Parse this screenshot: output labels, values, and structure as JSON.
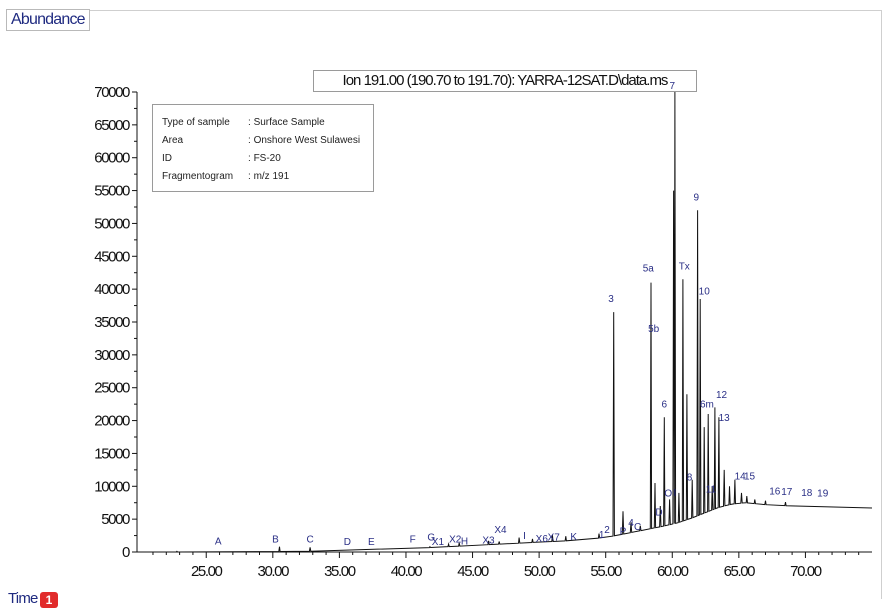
{
  "header": {
    "abundance_label": "Abundance"
  },
  "footer": {
    "time_label": "Time",
    "badge": "1"
  },
  "chart_data": {
    "type": "line",
    "title": "Ion 191.00 (190.70 to 191.70): YARRA-12SAT.D\\data.ms",
    "xlabel": "Time",
    "ylabel": "Abundance",
    "xlim": [
      19.8,
      75.0
    ],
    "ylim": [
      0,
      70000
    ],
    "x_ticks": [
      25.0,
      30.0,
      35.0,
      40.0,
      45.0,
      50.0,
      55.0,
      60.0,
      65.0,
      70.0
    ],
    "x_tick_labels": [
      "25.00",
      "30.00",
      "35.00",
      "40.00",
      "45.00",
      "50.00",
      "55.00",
      "60.00",
      "65.00",
      "70.00"
    ],
    "y_ticks": [
      0,
      5000,
      10000,
      15000,
      20000,
      25000,
      30000,
      35000,
      40000,
      45000,
      50000,
      55000,
      60000,
      65000,
      70000
    ],
    "y_tick_labels": [
      "0",
      "5000",
      "10000",
      "15000",
      "20000",
      "25000",
      "30000",
      "35000",
      "40000",
      "45000",
      "50000",
      "55000",
      "60000",
      "65000",
      "70000"
    ],
    "grid": false,
    "baseline": [
      [
        19.8,
        0
      ],
      [
        24.0,
        0
      ],
      [
        28.0,
        50
      ],
      [
        32.0,
        100
      ],
      [
        36.0,
        200
      ],
      [
        38.0,
        300
      ],
      [
        40.0,
        500
      ],
      [
        42.0,
        700
      ],
      [
        44.0,
        900
      ],
      [
        46.0,
        1100
      ],
      [
        48.0,
        1300
      ],
      [
        50.0,
        1500
      ],
      [
        52.0,
        1700
      ],
      [
        54.0,
        2000
      ],
      [
        55.5,
        2400
      ],
      [
        56.5,
        2800
      ],
      [
        57.5,
        3200
      ],
      [
        58.5,
        3600
      ],
      [
        59.5,
        4000
      ],
      [
        60.5,
        4500
      ],
      [
        61.5,
        5200
      ],
      [
        62.5,
        6000
      ],
      [
        63.5,
        6800
      ],
      [
        64.5,
        7300
      ],
      [
        65.5,
        7500
      ],
      [
        67.0,
        7200
      ],
      [
        69.0,
        7000
      ],
      [
        71.0,
        6800
      ],
      [
        73.0,
        6700
      ],
      [
        75.0,
        6700
      ]
    ],
    "peaks": [
      {
        "x": 22.8,
        "y": 100
      },
      {
        "x": 30.5,
        "y": 800
      },
      {
        "x": 32.8,
        "y": 700
      },
      {
        "x": 41.8,
        "y": 800
      },
      {
        "x": 43.2,
        "y": 1200
      },
      {
        "x": 44.0,
        "y": 1400
      },
      {
        "x": 46.2,
        "y": 1700
      },
      {
        "x": 47.0,
        "y": 1600
      },
      {
        "x": 48.5,
        "y": 2200
      },
      {
        "x": 49.5,
        "y": 2000
      },
      {
        "x": 51.0,
        "y": 2600
      },
      {
        "x": 52.0,
        "y": 2400
      },
      {
        "x": 54.5,
        "y": 2800
      },
      {
        "x": 55.6,
        "y": 36500
      },
      {
        "x": 56.3,
        "y": 6200
      },
      {
        "x": 56.9,
        "y": 4500
      },
      {
        "x": 57.6,
        "y": 4000
      },
      {
        "x": 58.4,
        "y": 41000
      },
      {
        "x": 58.7,
        "y": 10500
      },
      {
        "x": 59.1,
        "y": 7000
      },
      {
        "x": 59.4,
        "y": 20500
      },
      {
        "x": 59.8,
        "y": 8000
      },
      {
        "x": 60.1,
        "y": 55000
      },
      {
        "x": 60.2,
        "y": 70000
      },
      {
        "x": 60.5,
        "y": 9000
      },
      {
        "x": 60.8,
        "y": 41500
      },
      {
        "x": 61.1,
        "y": 24000
      },
      {
        "x": 61.5,
        "y": 11000
      },
      {
        "x": 61.9,
        "y": 52000
      },
      {
        "x": 62.1,
        "y": 38500
      },
      {
        "x": 62.4,
        "y": 19000
      },
      {
        "x": 62.7,
        "y": 21000
      },
      {
        "x": 63.0,
        "y": 10000
      },
      {
        "x": 63.2,
        "y": 22000
      },
      {
        "x": 63.5,
        "y": 20500
      },
      {
        "x": 63.9,
        "y": 12500
      },
      {
        "x": 64.3,
        "y": 10000
      },
      {
        "x": 64.7,
        "y": 11000
      },
      {
        "x": 65.2,
        "y": 9000
      },
      {
        "x": 65.6,
        "y": 8500
      },
      {
        "x": 66.2,
        "y": 8000
      },
      {
        "x": 67.0,
        "y": 7800
      },
      {
        "x": 68.5,
        "y": 7600
      }
    ],
    "annotations": [
      {
        "label": "A",
        "x": 25.9,
        "y": 700
      },
      {
        "label": "B",
        "x": 30.2,
        "y": 1000
      },
      {
        "label": "C",
        "x": 32.8,
        "y": 1000
      },
      {
        "label": "D",
        "x": 35.6,
        "y": 600
      },
      {
        "label": "E",
        "x": 37.4,
        "y": 600
      },
      {
        "label": "F",
        "x": 40.5,
        "y": 1000
      },
      {
        "label": "G",
        "x": 41.9,
        "y": 1300
      },
      {
        "label": "X1",
        "x": 42.4,
        "y": 600
      },
      {
        "label": "X2",
        "x": 43.7,
        "y": 1000
      },
      {
        "label": "H",
        "x": 44.4,
        "y": 700
      },
      {
        "label": "X3",
        "x": 46.2,
        "y": 800
      },
      {
        "label": "X4",
        "x": 47.1,
        "y": 2400
      },
      {
        "label": "I",
        "x": 48.9,
        "y": 1500
      },
      {
        "label": "X6",
        "x": 50.2,
        "y": 1100
      },
      {
        "label": "X7",
        "x": 51.1,
        "y": 1300
      },
      {
        "label": "K",
        "x": 52.6,
        "y": 1400
      },
      {
        "label": "1",
        "x": 54.7,
        "y": 1700
      },
      {
        "label": "2",
        "x": 55.1,
        "y": 2400
      },
      {
        "label": "3",
        "x": 55.4,
        "y": 37600
      },
      {
        "label": "P",
        "x": 56.3,
        "y": 2200
      },
      {
        "label": "4",
        "x": 56.9,
        "y": 3500
      },
      {
        "label": "C",
        "x": 57.4,
        "y": 2900
      },
      {
        "label": "5a",
        "x": 58.2,
        "y": 42200
      },
      {
        "label": "5b",
        "x": 58.6,
        "y": 33000
      },
      {
        "label": "D",
        "x": 59.0,
        "y": 5100
      },
      {
        "label": "6",
        "x": 59.4,
        "y": 21500
      },
      {
        "label": "O",
        "x": 59.7,
        "y": 8000
      },
      {
        "label": "I",
        "x": 60.2,
        "y": 8100
      },
      {
        "label": "7",
        "x": 60.0,
        "y": 70000
      },
      {
        "label": "Tx",
        "x": 60.9,
        "y": 42500
      },
      {
        "label": "9",
        "x": 61.8,
        "y": 53000
      },
      {
        "label": "10",
        "x": 62.4,
        "y": 38700
      },
      {
        "label": "8",
        "x": 61.3,
        "y": 10400
      },
      {
        "label": "6m",
        "x": 62.6,
        "y": 21500
      },
      {
        "label": "12",
        "x": 63.7,
        "y": 23000
      },
      {
        "label": "11",
        "x": 62.9,
        "y": 8600
      },
      {
        "label": "13",
        "x": 63.9,
        "y": 19500
      },
      {
        "label": "14",
        "x": 65.1,
        "y": 10600
      },
      {
        "label": "15",
        "x": 65.8,
        "y": 10600
      },
      {
        "label": "16",
        "x": 67.7,
        "y": 8300
      },
      {
        "label": "17",
        "x": 68.6,
        "y": 8200
      },
      {
        "label": "18",
        "x": 70.1,
        "y": 8100
      },
      {
        "label": "19",
        "x": 71.3,
        "y": 8000
      }
    ],
    "legend_box": [
      {
        "key": "Type of sample",
        "sep": ":",
        "value": "Surface Sample"
      },
      {
        "key": "Area",
        "sep": ":",
        "value": "Onshore West Sulawesi"
      },
      {
        "key": "ID",
        "sep": ":",
        "value": "FS-20"
      },
      {
        "key": "Fragmentogram",
        "sep": ":",
        "value": "m/z 191"
      }
    ]
  }
}
